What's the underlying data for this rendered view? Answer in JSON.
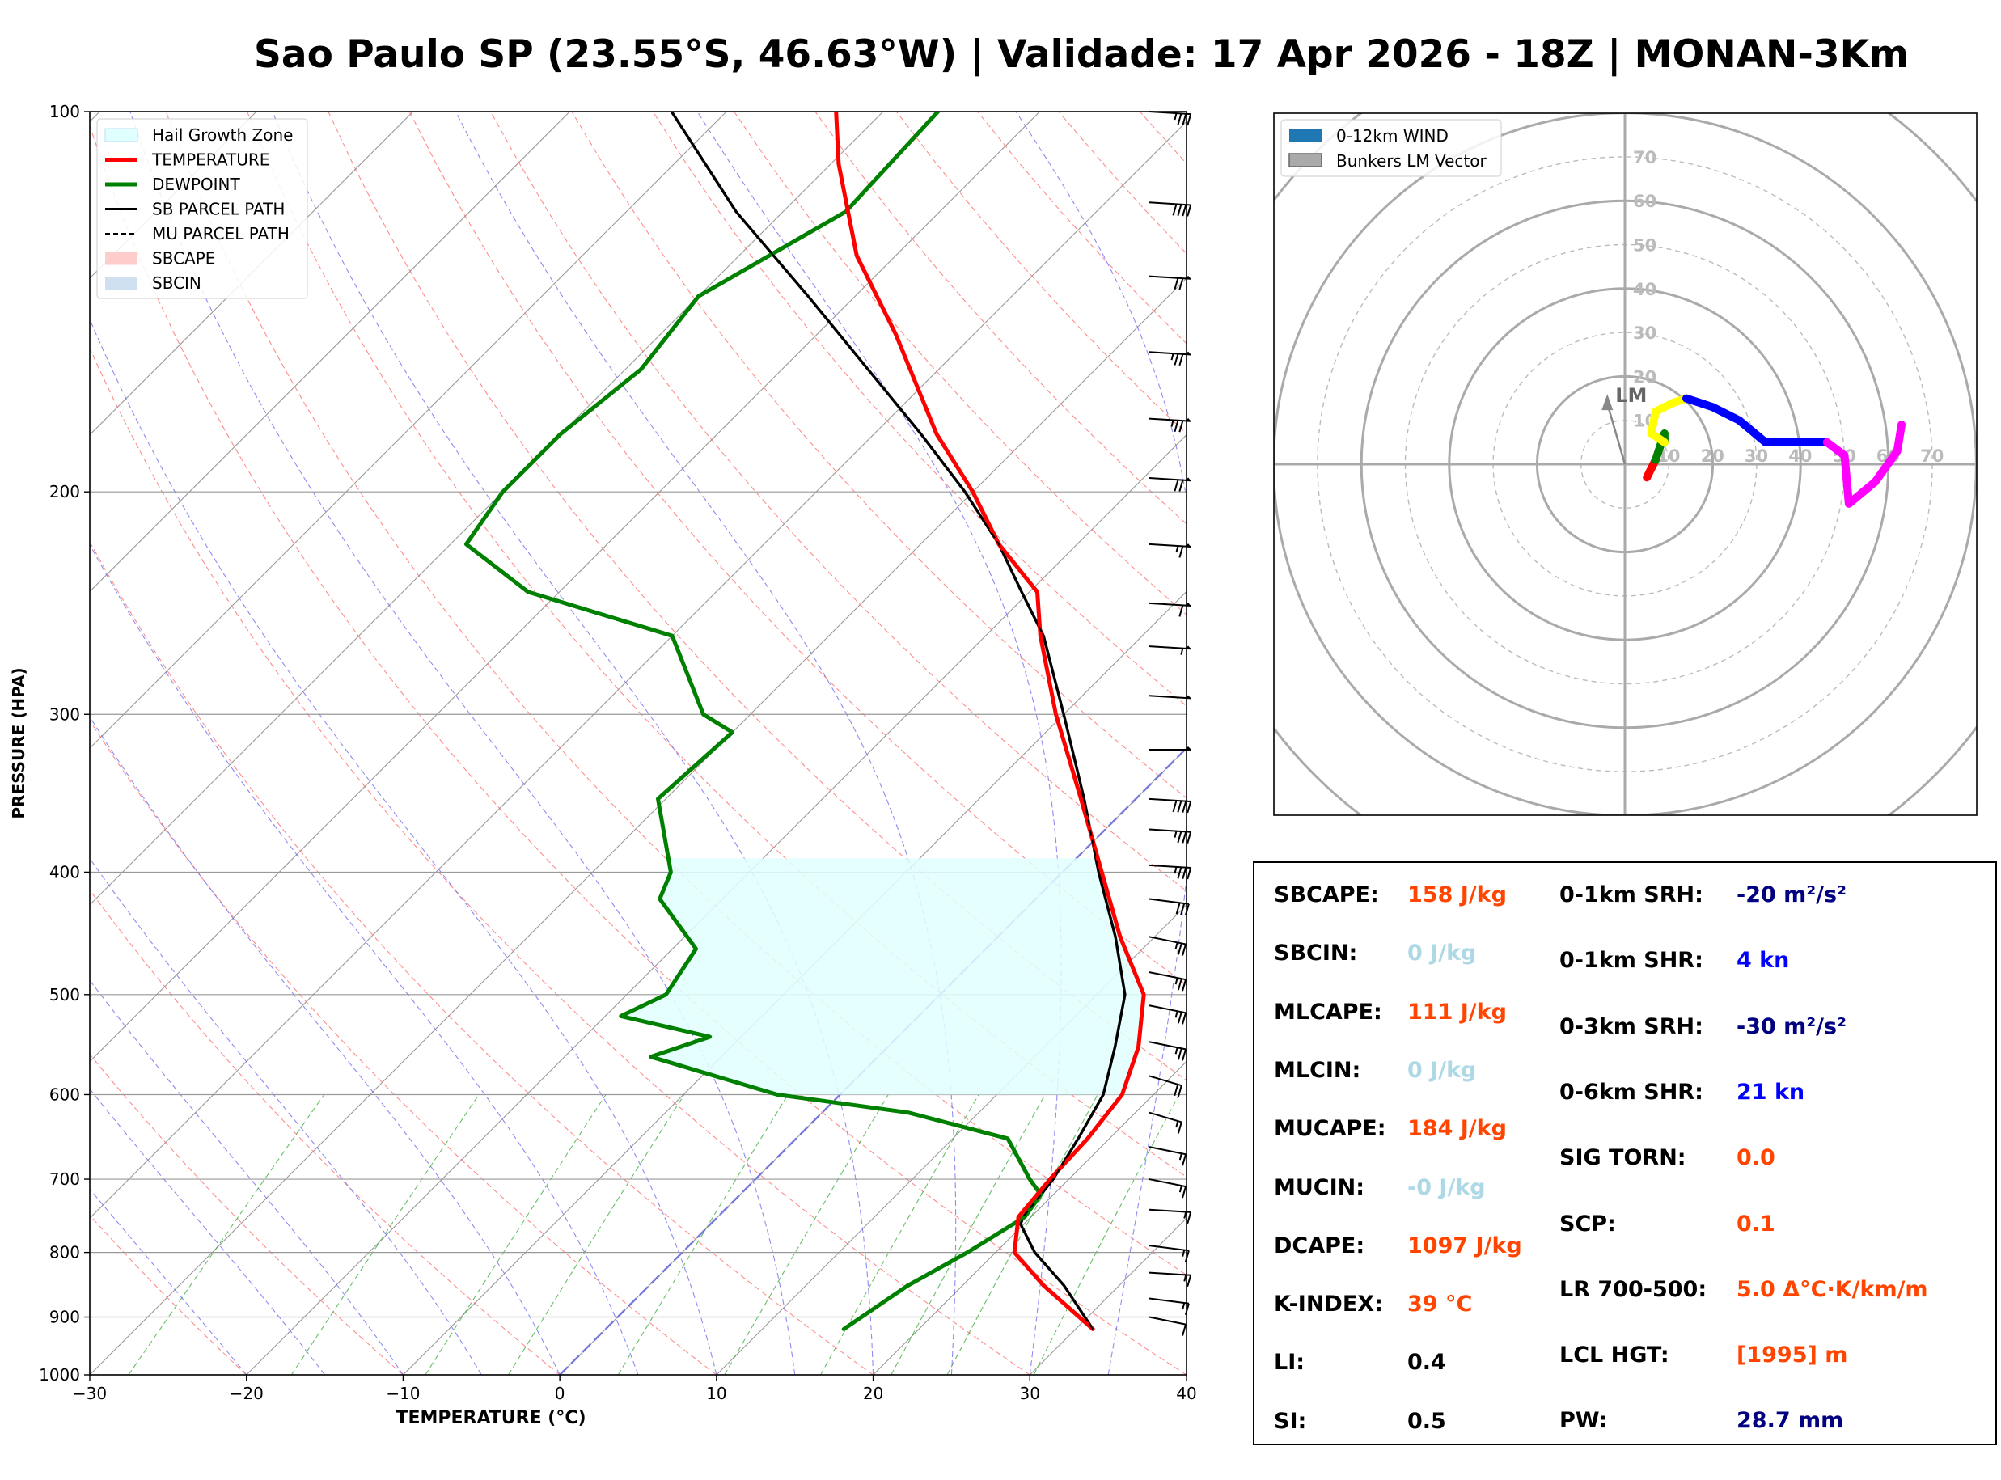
{
  "title": "Sao Paulo SP (23.55°S, 46.63°W) | Validade: 17 Apr 2026 - 18Z | MONAN-3Km",
  "colors": {
    "temperature": "#ff0000",
    "dewpoint": "#008000",
    "parcel": "#000000",
    "hail": "#e0ffff",
    "isotherm": "#808080",
    "dry_adiabat": "#ff6666",
    "moist_adiabat": "#6666ee",
    "mixing_ratio": "#33aa33",
    "orange_value": "#ff4500",
    "lightblue_value": "#add8e6",
    "navy_value": "#000080",
    "blue_value": "#0000ff",
    "black_value": "#000000"
  },
  "chart_data": [
    {
      "type": "line",
      "subtype": "skew-t log-p",
      "xlabel": "TEMPERATURE (°C)",
      "ylabel": "PRESSURE (HPA)",
      "xlim": [
        -30,
        40
      ],
      "ylim": [
        1000,
        100
      ],
      "xticks": [
        -30,
        -20,
        -10,
        0,
        10,
        20,
        30,
        40
      ],
      "xtick_labels": [
        "−30",
        "−20",
        "−10",
        "0",
        "10",
        "20",
        "30",
        "40"
      ],
      "yticks": [
        1000,
        900,
        800,
        700,
        600,
        500,
        400,
        300,
        200,
        100
      ],
      "ytick_labels": [
        "1000",
        "900",
        "800",
        "700",
        "600",
        "500",
        "400",
        "300",
        "200",
        "100"
      ],
      "legend": {
        "position": "top-left",
        "entries": [
          "Hail Growth Zone",
          "TEMPERATURE",
          "DEWPOINT",
          "SB PARCEL PATH",
          "MU PARCEL PATH",
          "SBCAPE",
          "SBCIN"
        ]
      },
      "series": [
        {
          "name": "TEMPERATURE",
          "points": [
            [
              920,
              31.1
            ],
            [
              850,
              25.2
            ],
            [
              800,
              21.2
            ],
            [
              750,
              19.2
            ],
            [
              700,
              18.8
            ],
            [
              650,
              18.6
            ],
            [
              600,
              18.0
            ],
            [
              550,
              16.0
            ],
            [
              500,
              13.0
            ],
            [
              450,
              7.8
            ],
            [
              400,
              2.5
            ],
            [
              350,
              -3.5
            ],
            [
              300,
              -10.5
            ],
            [
              260,
              -16.5
            ],
            [
              240,
              -19.5
            ],
            [
              220,
              -25.0
            ],
            [
              200,
              -30.0
            ],
            [
              180,
              -36.0
            ],
            [
              150,
              -45.0
            ],
            [
              130,
              -52.5
            ],
            [
              110,
              -59.5
            ],
            [
              100,
              -63.0
            ]
          ]
        },
        {
          "name": "DEWPOINT",
          "points": [
            [
              920,
              15.2
            ],
            [
              850,
              16.5
            ],
            [
              800,
              18.2
            ],
            [
              750,
              19.6
            ],
            [
              720,
              19.2
            ],
            [
              700,
              17.5
            ],
            [
              650,
              13.5
            ],
            [
              620,
              5.5
            ],
            [
              600,
              -4.0
            ],
            [
              560,
              -14.5
            ],
            [
              540,
              -12.0
            ],
            [
              520,
              -19.0
            ],
            [
              500,
              -17.5
            ],
            [
              460,
              -18.5
            ],
            [
              420,
              -24.0
            ],
            [
              400,
              -25.0
            ],
            [
              350,
              -30.5
            ],
            [
              310,
              -30.0
            ],
            [
              300,
              -33.0
            ],
            [
              260,
              -40.0
            ],
            [
              240,
              -52.0
            ],
            [
              220,
              -59.0
            ],
            [
              200,
              -60.0
            ],
            [
              180,
              -60.0
            ],
            [
              160,
              -59.0
            ],
            [
              140,
              -60.0
            ],
            [
              120,
              -56.0
            ],
            [
              100,
              -56.5
            ]
          ]
        },
        {
          "name": "SB PARCEL PATH",
          "points": [
            [
              920,
              31.1
            ],
            [
              850,
              26.5
            ],
            [
              800,
              22.5
            ],
            [
              760,
              19.8
            ],
            [
              750,
              19.5
            ],
            [
              700,
              19.0
            ],
            [
              650,
              18.0
            ],
            [
              600,
              16.8
            ],
            [
              550,
              14.5
            ],
            [
              500,
              11.8
            ],
            [
              450,
              7.5
            ],
            [
              400,
              2.3
            ],
            [
              350,
              -3.3
            ],
            [
              300,
              -10.0
            ],
            [
              260,
              -16.3
            ],
            [
              240,
              -20.5
            ],
            [
              220,
              -25.0
            ],
            [
              200,
              -30.5
            ],
            [
              180,
              -37.0
            ],
            [
              160,
              -44.5
            ],
            [
              140,
              -53.0
            ],
            [
              120,
              -63.0
            ],
            [
              100,
              -73.5
            ]
          ]
        }
      ],
      "hail_growth_zone": {
        "p_bottom": 600,
        "p_top": 390
      },
      "wind_barbs_kn": [
        {
          "p": 900,
          "dir": 300,
          "spd": 10
        },
        {
          "p": 870,
          "dir": 290,
          "spd": 15
        },
        {
          "p": 830,
          "dir": 280,
          "spd": 15
        },
        {
          "p": 790,
          "dir": 290,
          "spd": 15
        },
        {
          "p": 740,
          "dir": 280,
          "spd": 15
        },
        {
          "p": 700,
          "dir": 300,
          "spd": 15
        },
        {
          "p": 660,
          "dir": 300,
          "spd": 15
        },
        {
          "p": 620,
          "dir": 310,
          "spd": 15
        },
        {
          "p": 580,
          "dir": 310,
          "spd": 20
        },
        {
          "p": 545,
          "dir": 300,
          "spd": 25
        },
        {
          "p": 510,
          "dir": 300,
          "spd": 25
        },
        {
          "p": 480,
          "dir": 300,
          "spd": 25
        },
        {
          "p": 450,
          "dir": 300,
          "spd": 25
        },
        {
          "p": 420,
          "dir": 290,
          "spd": 30
        },
        {
          "p": 395,
          "dir": 280,
          "spd": 35
        },
        {
          "p": 370,
          "dir": 280,
          "spd": 35
        },
        {
          "p": 350,
          "dir": 280,
          "spd": 40
        },
        {
          "p": 320,
          "dir": 270,
          "spd": 50
        },
        {
          "p": 290,
          "dir": 280,
          "spd": 50
        },
        {
          "p": 265,
          "dir": 280,
          "spd": 55
        },
        {
          "p": 245,
          "dir": 280,
          "spd": 60
        },
        {
          "p": 220,
          "dir": 280,
          "spd": 65
        },
        {
          "p": 195,
          "dir": 280,
          "spd": 70
        },
        {
          "p": 175,
          "dir": 280,
          "spd": 75
        },
        {
          "p": 155,
          "dir": 280,
          "spd": 75
        },
        {
          "p": 135,
          "dir": 280,
          "spd": 70
        },
        {
          "p": 118,
          "dir": 280,
          "spd": 40
        },
        {
          "p": 100,
          "dir": 280,
          "spd": 35
        }
      ]
    },
    {
      "type": "line",
      "subtype": "hodograph",
      "legend": {
        "position": "top-left",
        "entries": [
          "0-12km WIND",
          "Bunkers LM Vector"
        ]
      },
      "rings_kn": [
        10,
        20,
        30,
        40,
        50,
        60,
        70
      ],
      "ring_labels": [
        "10",
        "20",
        "30",
        "40",
        "50",
        "60",
        "70"
      ],
      "lm_label": "LM",
      "lm_vector_kn": [
        -4,
        16
      ],
      "segments": [
        {
          "name": "0-1km",
          "color": "#ff0000",
          "points": [
            [
              5,
              -3
            ],
            [
              6,
              -1
            ],
            [
              7,
              1
            ]
          ]
        },
        {
          "name": "1-3km",
          "color": "#008000",
          "points": [
            [
              7,
              1
            ],
            [
              8,
              4
            ],
            [
              9,
              7
            ],
            [
              9,
              5
            ]
          ]
        },
        {
          "name": "3-6km",
          "color": "#ffff00",
          "points": [
            [
              9,
              5
            ],
            [
              6,
              7
            ],
            [
              7,
              12
            ],
            [
              9,
              13
            ],
            [
              11,
              14
            ],
            [
              14,
              15
            ]
          ]
        },
        {
          "name": "6-9km",
          "color": "#0000ff",
          "points": [
            [
              14,
              15
            ],
            [
              20,
              13
            ],
            [
              26,
              10
            ],
            [
              32,
              5
            ],
            [
              40,
              5
            ],
            [
              46,
              5
            ]
          ]
        },
        {
          "name": "9-12km",
          "color": "#ff00ff",
          "points": [
            [
              46,
              5
            ],
            [
              50,
              2
            ],
            [
              51,
              -9
            ],
            [
              57,
              -4
            ],
            [
              62,
              3
            ],
            [
              63,
              9
            ]
          ]
        }
      ]
    }
  ],
  "indices": {
    "left": [
      {
        "label": "SBCAPE:",
        "value": "158 J/kg",
        "color": "orange"
      },
      {
        "label": "SBCIN:",
        "value": "0 J/kg",
        "color": "lightblue"
      },
      {
        "label": "MLCAPE:",
        "value": "111 J/kg",
        "color": "orange"
      },
      {
        "label": "MLCIN:",
        "value": "0 J/kg",
        "color": "lightblue"
      },
      {
        "label": "MUCAPE:",
        "value": "184 J/kg",
        "color": "orange"
      },
      {
        "label": "MUCIN:",
        "value": "-0 J/kg",
        "color": "lightblue"
      },
      {
        "label": "DCAPE:",
        "value": "1097 J/kg",
        "color": "orange"
      },
      {
        "label": "K-INDEX:",
        "value": "39 °C",
        "color": "orange"
      },
      {
        "label": "LI:",
        "value": "0.4",
        "color": "black"
      },
      {
        "label": "SI:",
        "value": "0.5",
        "color": "black"
      }
    ],
    "right": [
      {
        "label": "0-1km SRH:",
        "value": "-20 m²/s²",
        "color": "navy"
      },
      {
        "label": "0-1km SHR:",
        "value": "4 kn",
        "color": "blue"
      },
      {
        "label": "0-3km SRH:",
        "value": "-30 m²/s²",
        "color": "navy"
      },
      {
        "label": "0-6km SHR:",
        "value": "21 kn",
        "color": "blue"
      },
      {
        "label": "SIG TORN:",
        "value": "0.0",
        "color": "orange"
      },
      {
        "label": "SCP:",
        "value": "0.1",
        "color": "orange"
      },
      {
        "label": "LR 700-500:",
        "value": "5.0 Δ°C·K/km/m",
        "color": "orange"
      },
      {
        "label": "LCL HGT:",
        "value": "[1995] m",
        "color": "orange"
      },
      {
        "label": "PW:",
        "value": "28.7 mm",
        "color": "navy"
      }
    ]
  }
}
